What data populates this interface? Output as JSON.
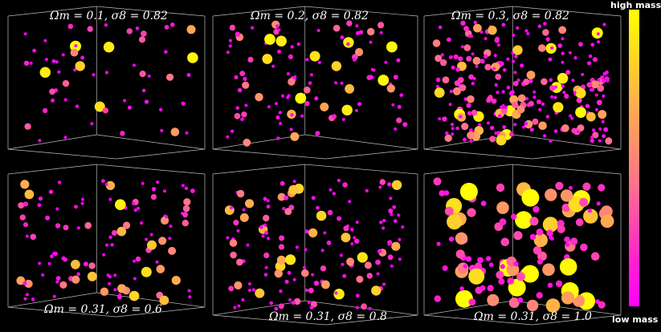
{
  "colorbar": {
    "top_label": "high mass",
    "bottom_label": "low mass",
    "gradient": [
      "#ffff00",
      "#ffb347",
      "#ff6f8f",
      "#ff1fd0",
      "#ff00ff"
    ]
  },
  "panels": [
    {
      "title": "Ωm = 0.1, σ8 = 0.82",
      "omega_m": 0.1,
      "sigma_8": 0.82,
      "density": 60
    },
    {
      "title": "Ωm = 0.2, σ8 = 0.82",
      "omega_m": 0.2,
      "sigma_8": 0.82,
      "density": 110
    },
    {
      "title": "Ωm = 0.3, σ8 = 0.82",
      "omega_m": 0.3,
      "sigma_8": 0.82,
      "density": 260
    },
    {
      "title": "Ωm = 0.31, σ8 = 0.6",
      "omega_m": 0.31,
      "sigma_8": 0.6,
      "density": 110
    },
    {
      "title": "Ωm = 0.31, σ8 = 0.8",
      "omega_m": 0.31,
      "sigma_8": 0.8,
      "density": 150
    },
    {
      "title": "Ωm = 0.31, σ8 = 1.0",
      "omega_m": 0.31,
      "sigma_8": 1.0,
      "density": 120
    }
  ]
}
